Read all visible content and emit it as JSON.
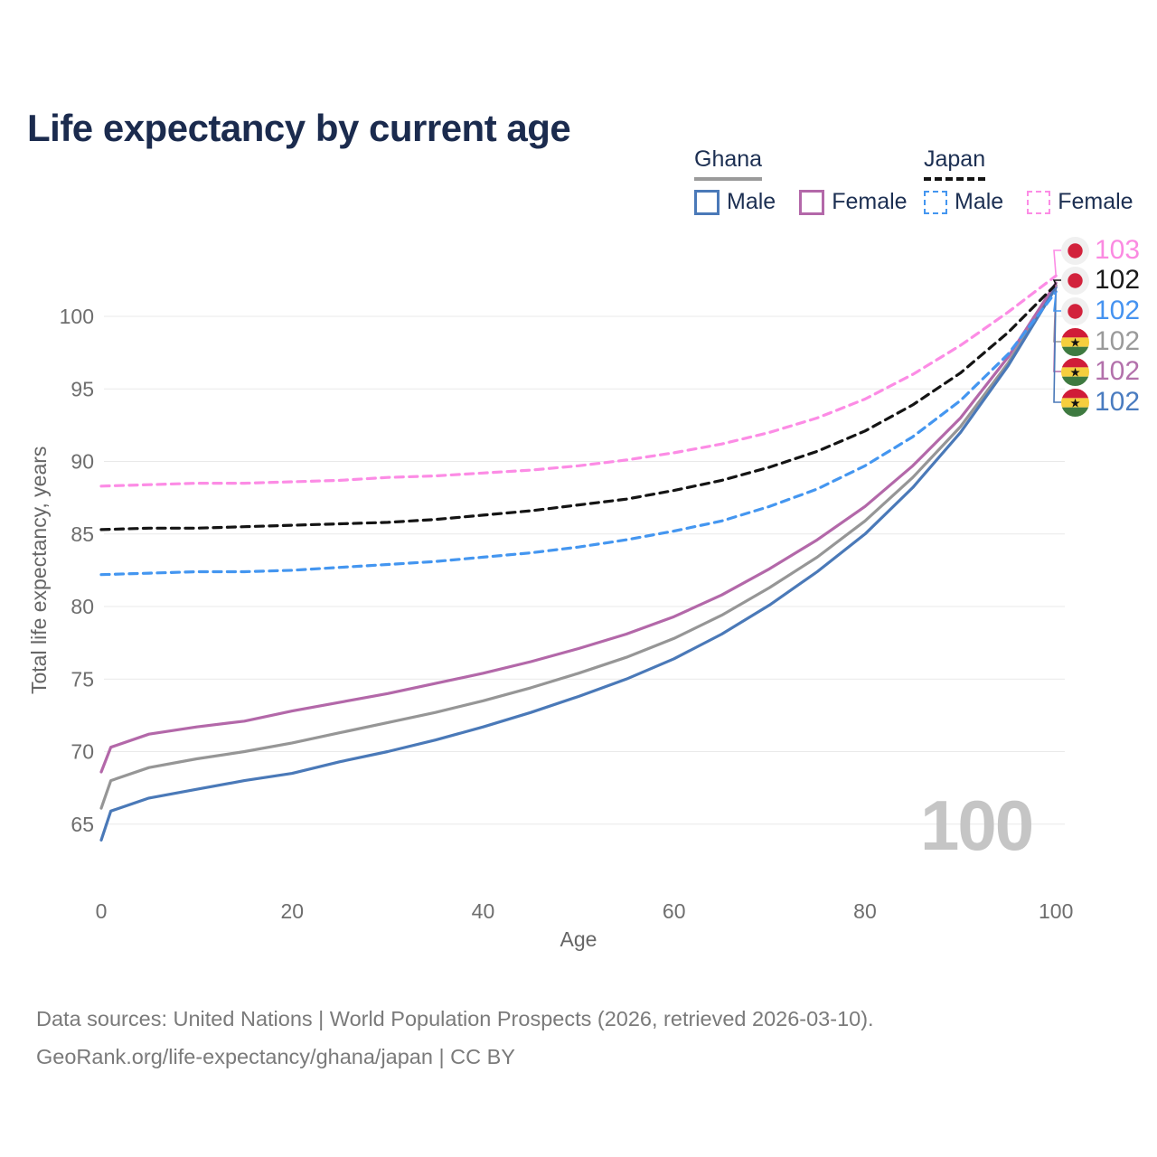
{
  "title": "Life expectancy by current age",
  "age_counter_watermark": "100",
  "legend": {
    "groups": [
      {
        "name": "Ghana",
        "line_style": "solid",
        "underline_color": "#9a9a9a",
        "items": [
          {
            "label": "Male",
            "color": "#4a79b8"
          },
          {
            "label": "Female",
            "color": "#b368a9"
          }
        ]
      },
      {
        "name": "Japan",
        "line_style": "dashed",
        "underline_color": "#141414",
        "items": [
          {
            "label": "Male",
            "color": "#4496f0"
          },
          {
            "label": "Female",
            "color": "#fc8ce5"
          }
        ]
      }
    ]
  },
  "axes": {
    "x_title": "Age",
    "y_title": "Total life expectancy, years"
  },
  "footer": {
    "line1": "Data sources: United Nations | World Population Prospects (2026, retrieved 2026-03-10).",
    "line2": "GeoRank.org/life-expectancy/ghana/japan | CC BY"
  },
  "chart_data": {
    "type": "line",
    "title": "Life expectancy by current age",
    "xlabel": "Age",
    "ylabel": "Total life expectancy, years",
    "xlim": [
      0,
      100
    ],
    "ylim": [
      62,
      104
    ],
    "xticks": [
      0,
      20,
      40,
      60,
      80,
      100
    ],
    "yticks": [
      65,
      70,
      75,
      80,
      85,
      90,
      95,
      100
    ],
    "grid": "horizontal",
    "legend_position": "top-right",
    "series": [
      {
        "id": "ghana-both",
        "name": "Ghana Both sexes",
        "country": "Ghana",
        "sex": "Both",
        "color": "#969696",
        "dashed": false,
        "points": [
          [
            0,
            66.1
          ],
          [
            1,
            68.0
          ],
          [
            5,
            68.9
          ],
          [
            10,
            69.5
          ],
          [
            15,
            70.0
          ],
          [
            20,
            70.6
          ],
          [
            25,
            71.3
          ],
          [
            30,
            72.0
          ],
          [
            35,
            72.7
          ],
          [
            40,
            73.5
          ],
          [
            45,
            74.4
          ],
          [
            50,
            75.4
          ],
          [
            55,
            76.5
          ],
          [
            60,
            77.8
          ],
          [
            65,
            79.4
          ],
          [
            70,
            81.3
          ],
          [
            75,
            83.4
          ],
          [
            80,
            85.9
          ],
          [
            85,
            88.9
          ],
          [
            90,
            92.4
          ],
          [
            95,
            96.8
          ],
          [
            100,
            102.1
          ]
        ],
        "end_label": {
          "value": "102",
          "color": "#9a9a9a",
          "flag": "ghana",
          "y": 378
        }
      },
      {
        "id": "ghana-female",
        "name": "Ghana Female",
        "country": "Ghana",
        "sex": "Female",
        "color": "#b368a9",
        "dashed": false,
        "points": [
          [
            0,
            68.6
          ],
          [
            1,
            70.3
          ],
          [
            5,
            71.2
          ],
          [
            10,
            71.7
          ],
          [
            15,
            72.1
          ],
          [
            20,
            72.8
          ],
          [
            25,
            73.4
          ],
          [
            30,
            74.0
          ],
          [
            35,
            74.7
          ],
          [
            40,
            75.4
          ],
          [
            45,
            76.2
          ],
          [
            50,
            77.1
          ],
          [
            55,
            78.1
          ],
          [
            60,
            79.3
          ],
          [
            65,
            80.8
          ],
          [
            70,
            82.6
          ],
          [
            75,
            84.6
          ],
          [
            80,
            86.9
          ],
          [
            85,
            89.7
          ],
          [
            90,
            93.0
          ],
          [
            95,
            97.2
          ],
          [
            100,
            102.3
          ]
        ],
        "end_label": {
          "value": "102",
          "color": "#b371ab",
          "flag": "ghana",
          "y": 411
        }
      },
      {
        "id": "ghana-male",
        "name": "Ghana Male",
        "country": "Ghana",
        "sex": "Male",
        "color": "#4a79b8",
        "dashed": false,
        "points": [
          [
            0,
            63.9
          ],
          [
            1,
            65.9
          ],
          [
            5,
            66.8
          ],
          [
            10,
            67.4
          ],
          [
            15,
            68.0
          ],
          [
            20,
            68.5
          ],
          [
            25,
            69.3
          ],
          [
            30,
            70.0
          ],
          [
            35,
            70.8
          ],
          [
            40,
            71.7
          ],
          [
            45,
            72.7
          ],
          [
            50,
            73.8
          ],
          [
            55,
            75.0
          ],
          [
            60,
            76.4
          ],
          [
            65,
            78.1
          ],
          [
            70,
            80.1
          ],
          [
            75,
            82.4
          ],
          [
            80,
            85.0
          ],
          [
            85,
            88.2
          ],
          [
            90,
            92.0
          ],
          [
            95,
            96.6
          ],
          [
            100,
            102.0
          ]
        ],
        "end_label": {
          "value": "102",
          "color": "#4a7cc0",
          "flag": "ghana",
          "y": 445
        }
      },
      {
        "id": "japan-male",
        "name": "Japan Male",
        "country": "Japan",
        "sex": "Male",
        "color": "#4496f0",
        "dashed": true,
        "points": [
          [
            0,
            82.2
          ],
          [
            5,
            82.3
          ],
          [
            10,
            82.4
          ],
          [
            15,
            82.4
          ],
          [
            20,
            82.5
          ],
          [
            25,
            82.7
          ],
          [
            30,
            82.9
          ],
          [
            35,
            83.1
          ],
          [
            40,
            83.4
          ],
          [
            45,
            83.7
          ],
          [
            50,
            84.1
          ],
          [
            55,
            84.6
          ],
          [
            60,
            85.2
          ],
          [
            65,
            85.9
          ],
          [
            70,
            86.9
          ],
          [
            75,
            88.1
          ],
          [
            80,
            89.7
          ],
          [
            85,
            91.7
          ],
          [
            90,
            94.2
          ],
          [
            95,
            97.4
          ],
          [
            100,
            101.7
          ]
        ],
        "end_label": {
          "value": "102",
          "color": "#4693f0",
          "flag": "japan",
          "y": 344
        }
      },
      {
        "id": "japan-female",
        "name": "Japan Female",
        "country": "Japan",
        "sex": "Female",
        "color": "#fc8ce5",
        "dashed": true,
        "points": [
          [
            0,
            88.3
          ],
          [
            5,
            88.4
          ],
          [
            10,
            88.5
          ],
          [
            15,
            88.5
          ],
          [
            20,
            88.6
          ],
          [
            25,
            88.7
          ],
          [
            30,
            88.9
          ],
          [
            35,
            89.0
          ],
          [
            40,
            89.2
          ],
          [
            45,
            89.4
          ],
          [
            50,
            89.7
          ],
          [
            55,
            90.1
          ],
          [
            60,
            90.6
          ],
          [
            65,
            91.2
          ],
          [
            70,
            92.0
          ],
          [
            75,
            93.0
          ],
          [
            80,
            94.3
          ],
          [
            85,
            96.0
          ],
          [
            90,
            98.0
          ],
          [
            95,
            100.3
          ],
          [
            100,
            102.8
          ]
        ],
        "end_label": {
          "value": "103",
          "color": "#fb8ae1",
          "flag": "japan",
          "y": 277
        }
      },
      {
        "id": "japan-both",
        "name": "Japan Both sexes",
        "country": "Japan",
        "sex": "Both",
        "color": "#141414",
        "dashed": true,
        "points": [
          [
            0,
            85.3
          ],
          [
            5,
            85.4
          ],
          [
            10,
            85.4
          ],
          [
            15,
            85.5
          ],
          [
            20,
            85.6
          ],
          [
            25,
            85.7
          ],
          [
            30,
            85.8
          ],
          [
            35,
            86.0
          ],
          [
            40,
            86.3
          ],
          [
            45,
            86.6
          ],
          [
            50,
            87.0
          ],
          [
            55,
            87.4
          ],
          [
            60,
            88.0
          ],
          [
            65,
            88.7
          ],
          [
            70,
            89.6
          ],
          [
            75,
            90.7
          ],
          [
            80,
            92.1
          ],
          [
            85,
            93.9
          ],
          [
            90,
            96.1
          ],
          [
            95,
            98.9
          ],
          [
            100,
            102.2
          ]
        ],
        "end_label": {
          "value": "102",
          "color": "#1a1a1a",
          "flag": "japan",
          "y": 310
        }
      }
    ],
    "flag_colors": {
      "japan": {
        "background": "#f0f0f0",
        "disc": "#d2223c"
      },
      "ghana": {
        "red": "#d01c38",
        "gold": "#f5ce3e",
        "green": "#3e7a40",
        "star": "#111111"
      }
    }
  }
}
